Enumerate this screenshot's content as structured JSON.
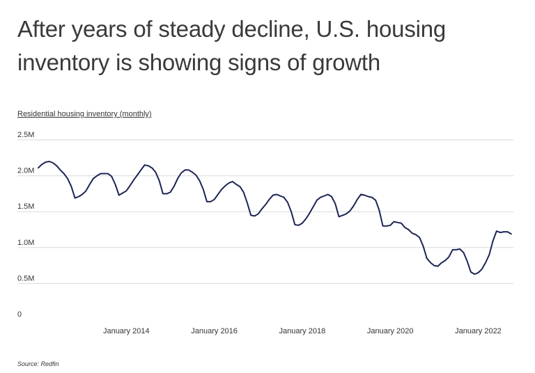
{
  "title": "After years of steady decline, U.S. housing inventory is showing signs of growth",
  "source": "Source: Redfin",
  "colors": {
    "line": "#1c2454",
    "grid": "#d9d9d9",
    "text": "#333333"
  },
  "chart_data": {
    "type": "line",
    "title": "After years of steady decline, U.S. housing inventory is showing signs of growth",
    "ylabel": "Residential housing inventory (monthly)",
    "xlabel": "",
    "ylim": [
      0,
      2500000
    ],
    "y_ticks": [
      {
        "value": 0,
        "label": "0"
      },
      {
        "value": 500000,
        "label": "0.5M"
      },
      {
        "value": 1000000,
        "label": "1.0M"
      },
      {
        "value": 1500000,
        "label": "1.5M"
      },
      {
        "value": 2000000,
        "label": "2.0M"
      },
      {
        "value": 2500000,
        "label": "2.5M"
      }
    ],
    "x_ticks": [
      {
        "value": 2014.0,
        "label": "January 2014"
      },
      {
        "value": 2016.0,
        "label": "January 2016"
      },
      {
        "value": 2018.0,
        "label": "January 2018"
      },
      {
        "value": 2020.0,
        "label": "January 2020"
      },
      {
        "value": 2022.0,
        "label": "January 2022"
      }
    ],
    "xlim": [
      2012.0,
      2022.8
    ],
    "grid": true,
    "series": [
      {
        "name": "Residential housing inventory",
        "x": [
          2012.0,
          2012.083,
          2012.167,
          2012.25,
          2012.333,
          2012.417,
          2012.5,
          2012.583,
          2012.667,
          2012.75,
          2012.833,
          2012.917,
          2013.0,
          2013.083,
          2013.167,
          2013.25,
          2013.333,
          2013.417,
          2013.5,
          2013.583,
          2013.667,
          2013.75,
          2013.833,
          2013.917,
          2014.0,
          2014.083,
          2014.167,
          2014.25,
          2014.333,
          2014.417,
          2014.5,
          2014.583,
          2014.667,
          2014.75,
          2014.833,
          2014.917,
          2015.0,
          2015.083,
          2015.167,
          2015.25,
          2015.333,
          2015.417,
          2015.5,
          2015.583,
          2015.667,
          2015.75,
          2015.833,
          2015.917,
          2016.0,
          2016.083,
          2016.167,
          2016.25,
          2016.333,
          2016.417,
          2016.5,
          2016.583,
          2016.667,
          2016.75,
          2016.833,
          2016.917,
          2017.0,
          2017.083,
          2017.167,
          2017.25,
          2017.333,
          2017.417,
          2017.5,
          2017.583,
          2017.667,
          2017.75,
          2017.833,
          2017.917,
          2018.0,
          2018.083,
          2018.167,
          2018.25,
          2018.333,
          2018.417,
          2018.5,
          2018.583,
          2018.667,
          2018.75,
          2018.833,
          2018.917,
          2019.0,
          2019.083,
          2019.167,
          2019.25,
          2019.333,
          2019.417,
          2019.5,
          2019.583,
          2019.667,
          2019.75,
          2019.833,
          2019.917,
          2020.0,
          2020.083,
          2020.167,
          2020.25,
          2020.333,
          2020.417,
          2020.5,
          2020.583,
          2020.667,
          2020.75,
          2020.833,
          2020.917,
          2021.0,
          2021.083,
          2021.167,
          2021.25,
          2021.333,
          2021.417,
          2021.5,
          2021.583,
          2021.667,
          2021.75,
          2021.833,
          2021.917,
          2022.0,
          2022.083,
          2022.167,
          2022.25,
          2022.333,
          2022.417,
          2022.5,
          2022.583,
          2022.667,
          2022.75
        ],
        "y": [
          2110000,
          2160000,
          2190000,
          2200000,
          2180000,
          2140000,
          2080000,
          2030000,
          1960000,
          1850000,
          1690000,
          1710000,
          1740000,
          1790000,
          1880000,
          1960000,
          2000000,
          2030000,
          2030000,
          2030000,
          1990000,
          1880000,
          1730000,
          1760000,
          1790000,
          1860000,
          1940000,
          2010000,
          2080000,
          2150000,
          2140000,
          2110000,
          2050000,
          1930000,
          1750000,
          1750000,
          1770000,
          1850000,
          1960000,
          2040000,
          2080000,
          2080000,
          2050000,
          2010000,
          1930000,
          1810000,
          1640000,
          1640000,
          1670000,
          1740000,
          1810000,
          1860000,
          1900000,
          1920000,
          1880000,
          1850000,
          1770000,
          1620000,
          1450000,
          1440000,
          1470000,
          1540000,
          1600000,
          1670000,
          1730000,
          1740000,
          1720000,
          1700000,
          1630000,
          1500000,
          1320000,
          1310000,
          1340000,
          1400000,
          1480000,
          1570000,
          1660000,
          1700000,
          1720000,
          1740000,
          1710000,
          1610000,
          1430000,
          1450000,
          1470000,
          1510000,
          1580000,
          1670000,
          1740000,
          1730000,
          1710000,
          1700000,
          1660000,
          1520000,
          1300000,
          1300000,
          1310000,
          1360000,
          1350000,
          1340000,
          1280000,
          1250000,
          1200000,
          1180000,
          1140000,
          1020000,
          850000,
          790000,
          750000,
          740000,
          790000,
          820000,
          870000,
          970000,
          970000,
          980000,
          930000,
          810000,
          660000,
          630000,
          650000,
          700000,
          790000,
          900000,
          1090000,
          1230000,
          1210000,
          1220000,
          1220000,
          1190000
        ]
      }
    ]
  }
}
